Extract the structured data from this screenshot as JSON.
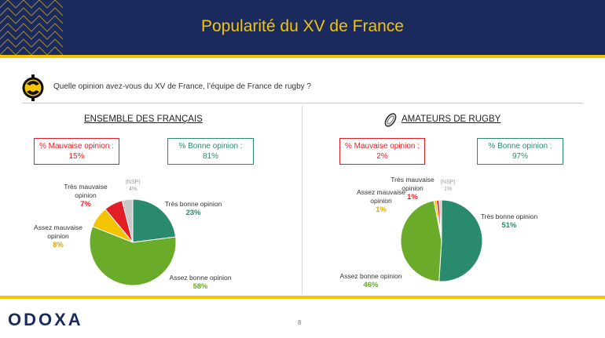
{
  "header": {
    "title": "Popularité du XV de France"
  },
  "question": "Quelle opinion avez-vous du XV de France, l’équipe de France de rugby ?",
  "colors": {
    "tres_bonne": "#2a8a6e",
    "assez_bonne": "#6aab2a",
    "assez_mauvaise": "#f5c400",
    "tres_mauvaise": "#e31e24",
    "nsp": "#c8c8c8",
    "navy": "#1b2a5c",
    "gold": "#f5c400"
  },
  "sections": [
    {
      "title": "ENSEMBLE DES FRANÇAIS",
      "bad_box": {
        "label": "% Mauvaise opinion :",
        "value": "15%"
      },
      "good_box": {
        "label": "% Bonne opinion :",
        "value": "81%"
      }
    },
    {
      "title": "AMATEURS DE RUGBY",
      "bad_box": {
        "label": "% Mauvaise opinion :",
        "value": "2%"
      },
      "good_box": {
        "label": "% Bonne opinion :",
        "value": "97%"
      }
    }
  ],
  "chart_data": [
    {
      "type": "pie",
      "title": "ENSEMBLE DES FRANÇAIS",
      "labels": [
        "Très bonne opinion",
        "Assez bonne opinion",
        "Assez mauvaise opinion",
        "Très mauvaise opinion",
        "(NSP)"
      ],
      "values": [
        23,
        58,
        8,
        7,
        4
      ],
      "value_labels": [
        "23%",
        "58%",
        "8%",
        "7%",
        "4%"
      ]
    },
    {
      "type": "pie",
      "title": "AMATEURS DE RUGBY",
      "labels": [
        "Très bonne opinion",
        "Assez bonne opinion",
        "Assez mauvaise opinion",
        "Très mauvaise opinion",
        "(NSP)"
      ],
      "values": [
        51,
        46,
        1,
        1,
        1
      ],
      "value_labels": [
        "51%",
        "46%",
        "1%",
        "1%",
        "1%"
      ]
    }
  ],
  "footer": {
    "logo": "ODOXA",
    "page": "8"
  }
}
